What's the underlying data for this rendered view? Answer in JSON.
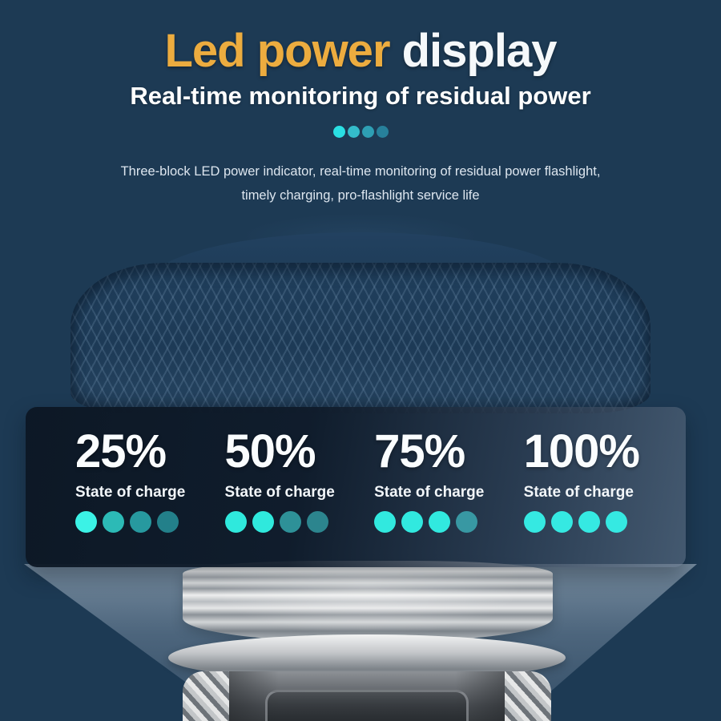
{
  "colors": {
    "background": "#1d3a54",
    "accent_gold": "#ecac3f"
  },
  "header": {
    "title_accent": "Led power",
    "title_rest": " display",
    "subtitle": "Real-time monitoring of residual power",
    "fade_dots": [
      "#2adfe3",
      "#34bccb",
      "#2e9fb4",
      "#27809b"
    ],
    "description_line1": "Three-block LED power indicator, real-time monitoring of residual power flashlight,",
    "description_line2": "timely charging, pro-flashlight service life"
  },
  "charge_panel": {
    "items": [
      {
        "percent": "25%",
        "label": "State of charge",
        "dot_colors": [
          "#3bf2e6",
          "#2cbab6",
          "#27999f",
          "#23808a"
        ]
      },
      {
        "percent": "50%",
        "label": "State of charge",
        "dot_colors": [
          "#2fe9dd",
          "#2fe9dd",
          "#2e9198",
          "#2c858e"
        ]
      },
      {
        "percent": "75%",
        "label": "State of charge",
        "dot_colors": [
          "#31e9df",
          "#31e9df",
          "#31e9df",
          "#3898a3"
        ]
      },
      {
        "percent": "100%",
        "label": "State of charge",
        "dot_colors": [
          "#35e9e2",
          "#35e9e2",
          "#35e9e2",
          "#35e9e2"
        ]
      }
    ]
  }
}
